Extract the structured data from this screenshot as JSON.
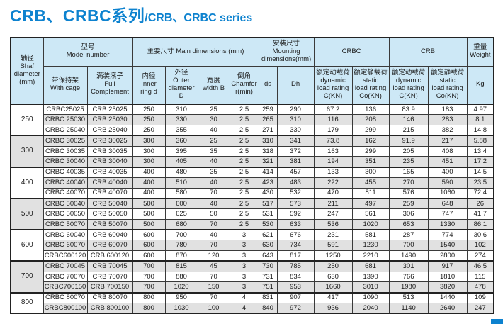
{
  "title": {
    "zh": "CRB、CRBC系列",
    "en": "/CRB、CRBC series"
  },
  "colors": {
    "title_blue": "#0d82cf",
    "header_bg": "#cde8f6",
    "stripe_gray": "#e1e1e1",
    "border_dark": "#222222"
  },
  "table": {
    "headers": {
      "shaft": "轴径\nShaf\ndiameter\n(mm)",
      "model": "型号\nModel number",
      "with_cage": "带保持架\nWith cage",
      "full_complement": "满装滚子\nFull\nComplement",
      "main_dims": "主要尺寸 Main dimensions (mm)",
      "inner": "内径\nInner\nring d",
      "outer": "外径\nOuter\ndiameter\nD",
      "width_b": "宽度\nwidth B",
      "chamfer": "倒角\nChamfer\nr(min)",
      "mounting": "安装尺寸\nMounting\ndimensions(mm)",
      "ds": "ds",
      "dh": "Dh",
      "crbc": "CRBC",
      "crb": "CRB",
      "crbc_dynamic": "额定动载荷\ndynamic\nload rating\nC(KN)",
      "crbc_static": "额定静载荷\nstatic\nload rating\nCo(KN)",
      "crb_dynamic": "额定动载荷\ndynamic\nload rating\nC(KN)",
      "crb_static": "额定静载荷\nstatic\nload rating\nCo(KN)",
      "weight": "重量\nWeight",
      "kg": "Kg"
    },
    "groups": [
      {
        "diameter": "250",
        "rows": [
          [
            "CRBC25025",
            "CRB 25025",
            "250",
            "310",
            "25",
            "2.5",
            "259",
            "290",
            "67.2",
            "136",
            "83.9",
            "183",
            "4.97"
          ],
          [
            "CRBC 25030",
            "CRB 25030",
            "250",
            "330",
            "30",
            "2.5",
            "265",
            "310",
            "116",
            "208",
            "146",
            "283",
            "8.1"
          ],
          [
            "CRBC 25040",
            "CRB 25040",
            "250",
            "355",
            "40",
            "2.5",
            "271",
            "330",
            "179",
            "299",
            "215",
            "382",
            "14.8"
          ]
        ]
      },
      {
        "diameter": "300",
        "rows": [
          [
            "CRBC 30025",
            "CRB 30025",
            "300",
            "360",
            "25",
            "2.5",
            "310",
            "341",
            "73.8",
            "162",
            "91.9",
            "217",
            "5.88"
          ],
          [
            "CRBC 30035",
            "CRB 30035",
            "300",
            "395",
            "35",
            "2.5",
            "318",
            "372",
            "163",
            "299",
            "205",
            "408",
            "13.4"
          ],
          [
            "CRBC 30040",
            "CRB 30040",
            "300",
            "405",
            "40",
            "2.5",
            "321",
            "381",
            "194",
            "351",
            "235",
            "451",
            "17.2"
          ]
        ]
      },
      {
        "diameter": "400",
        "rows": [
          [
            "CRBC 40035",
            "CRB 40035",
            "400",
            "480",
            "35",
            "2.5",
            "414",
            "457",
            "133",
            "300",
            "165",
            "400",
            "14.5"
          ],
          [
            "CRBC 40040",
            "CRB 40040",
            "400",
            "510",
            "40",
            "2.5",
            "423",
            "483",
            "222",
            "455",
            "270",
            "590",
            "23.5"
          ],
          [
            "CRBC 40070",
            "CRB 40070",
            "400",
            "580",
            "70",
            "2.5",
            "430",
            "532",
            "470",
            "811",
            "576",
            "1060",
            "72.4"
          ]
        ]
      },
      {
        "diameter": "500",
        "rows": [
          [
            "CRBC 50040",
            "CRB 50040",
            "500",
            "600",
            "40",
            "2.5",
            "517",
            "573",
            "211",
            "497",
            "259",
            "648",
            "26"
          ],
          [
            "CRBC 50050",
            "CRB 50050",
            "500",
            "625",
            "50",
            "2.5",
            "531",
            "592",
            "247",
            "561",
            "306",
            "747",
            "41.7"
          ],
          [
            "CRBC 50070",
            "CRB 50070",
            "500",
            "680",
            "70",
            "2.5",
            "530",
            "633",
            "536",
            "1020",
            "653",
            "1330",
            "86.1"
          ]
        ]
      },
      {
        "diameter": "600",
        "rows": [
          [
            "CRBC 60040",
            "CRB 60040",
            "600",
            "700",
            "40",
            "3",
            "621",
            "676",
            "231",
            "581",
            "287",
            "774",
            "30.6"
          ],
          [
            "CRBC 60070",
            "CRB 60070",
            "600",
            "780",
            "70",
            "3",
            "630",
            "734",
            "591",
            "1230",
            "700",
            "1540",
            "102"
          ],
          [
            "CRBC600120",
            "CRB 600120",
            "600",
            "870",
            "120",
            "3",
            "643",
            "817",
            "1250",
            "2210",
            "1490",
            "2800",
            "274"
          ]
        ]
      },
      {
        "diameter": "700",
        "rows": [
          [
            "CRBC 70045",
            "CRB 70045",
            "700",
            "815",
            "45",
            "3",
            "730",
            "785",
            "250",
            "681",
            "301",
            "917",
            "46.5"
          ],
          [
            "CRBC 70070",
            "CRB 70070",
            "700",
            "880",
            "70",
            "3",
            "731",
            "834",
            "630",
            "1390",
            "766",
            "1810",
            "115"
          ],
          [
            "CRBC700150",
            "CRB 700150",
            "700",
            "1020",
            "150",
            "3",
            "751",
            "953",
            "1660",
            "3010",
            "1980",
            "3820",
            "478"
          ]
        ]
      },
      {
        "diameter": "800",
        "rows": [
          [
            "CRBC 80070",
            "CRB 80070",
            "800",
            "950",
            "70",
            "4",
            "831",
            "907",
            "417",
            "1090",
            "513",
            "1440",
            "109"
          ],
          [
            "CRBC800100",
            "CRB 800100",
            "800",
            "1030",
            "100",
            "4",
            "840",
            "972",
            "936",
            "2040",
            "1140",
            "2640",
            "247"
          ]
        ]
      }
    ]
  }
}
